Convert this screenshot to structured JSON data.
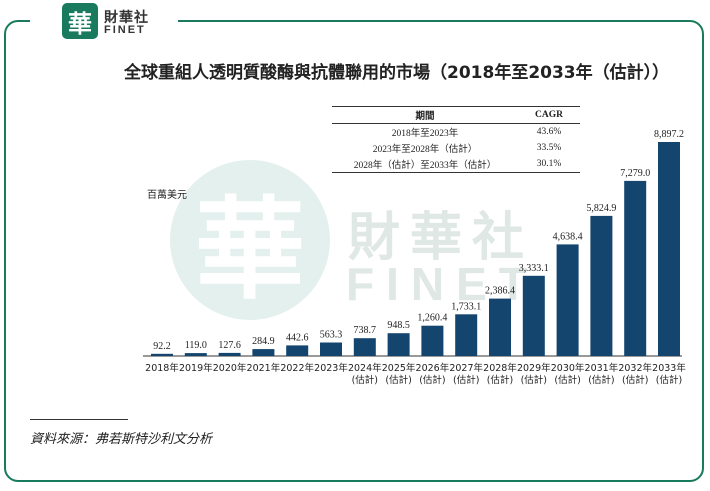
{
  "brand": {
    "seal_char": "華",
    "name_cn": "財華社",
    "name_en": "FINET"
  },
  "watermark": {
    "seal_char": "華",
    "name_cn": "財華社",
    "name_en": "FINET"
  },
  "title": "全球重組人透明質酸酶與抗體聯用的市場（2018年至2033年（估計））",
  "cagr_table": {
    "headers": [
      "期間",
      "CAGR"
    ],
    "rows": [
      [
        "2018年至2023年",
        "43.6%"
      ],
      [
        "2023年至2028年（估計）",
        "33.5%"
      ],
      [
        "2028年（估計）至2033年（估計）",
        "30.1%"
      ]
    ]
  },
  "source": "資料來源：弗若斯特沙利文分析",
  "colors": {
    "bar": "#13456f",
    "frame": "#1a7a5e"
  },
  "chart_data": {
    "type": "bar",
    "ylabel": "百萬美元",
    "categories": [
      [
        "2018年"
      ],
      [
        "2019年"
      ],
      [
        "2020年"
      ],
      [
        "2021年"
      ],
      [
        "2022年"
      ],
      [
        "2023年"
      ],
      [
        "2024年",
        "(估計)"
      ],
      [
        "2025年",
        "(估計)"
      ],
      [
        "2026年",
        "(估計)"
      ],
      [
        "2027年",
        "(估計)"
      ],
      [
        "2028年",
        "(估計)"
      ],
      [
        "2029年",
        "(估計)"
      ],
      [
        "2030年",
        "(估計)"
      ],
      [
        "2031年",
        "(估計)"
      ],
      [
        "2032年",
        "(估計)"
      ],
      [
        "2033年",
        "(估計)"
      ]
    ],
    "values": [
      92.2,
      119.0,
      127.6,
      284.9,
      442.6,
      563.3,
      738.7,
      948.5,
      1260.4,
      1733.1,
      2386.4,
      3333.1,
      4638.4,
      5824.9,
      7279.0,
      8897.2
    ],
    "labels": [
      "92.2",
      "119.0",
      "127.6",
      "284.9",
      "442.6",
      "563.3",
      "738.7",
      "948.5",
      "1,260.4",
      "1,733.1",
      "2,386.4",
      "3,333.1",
      "4,638.4",
      "5,824.9",
      "7,279.0",
      "8,897.2"
    ],
    "ylim": [
      0,
      8897.2
    ],
    "grid": false,
    "legend": "none"
  }
}
